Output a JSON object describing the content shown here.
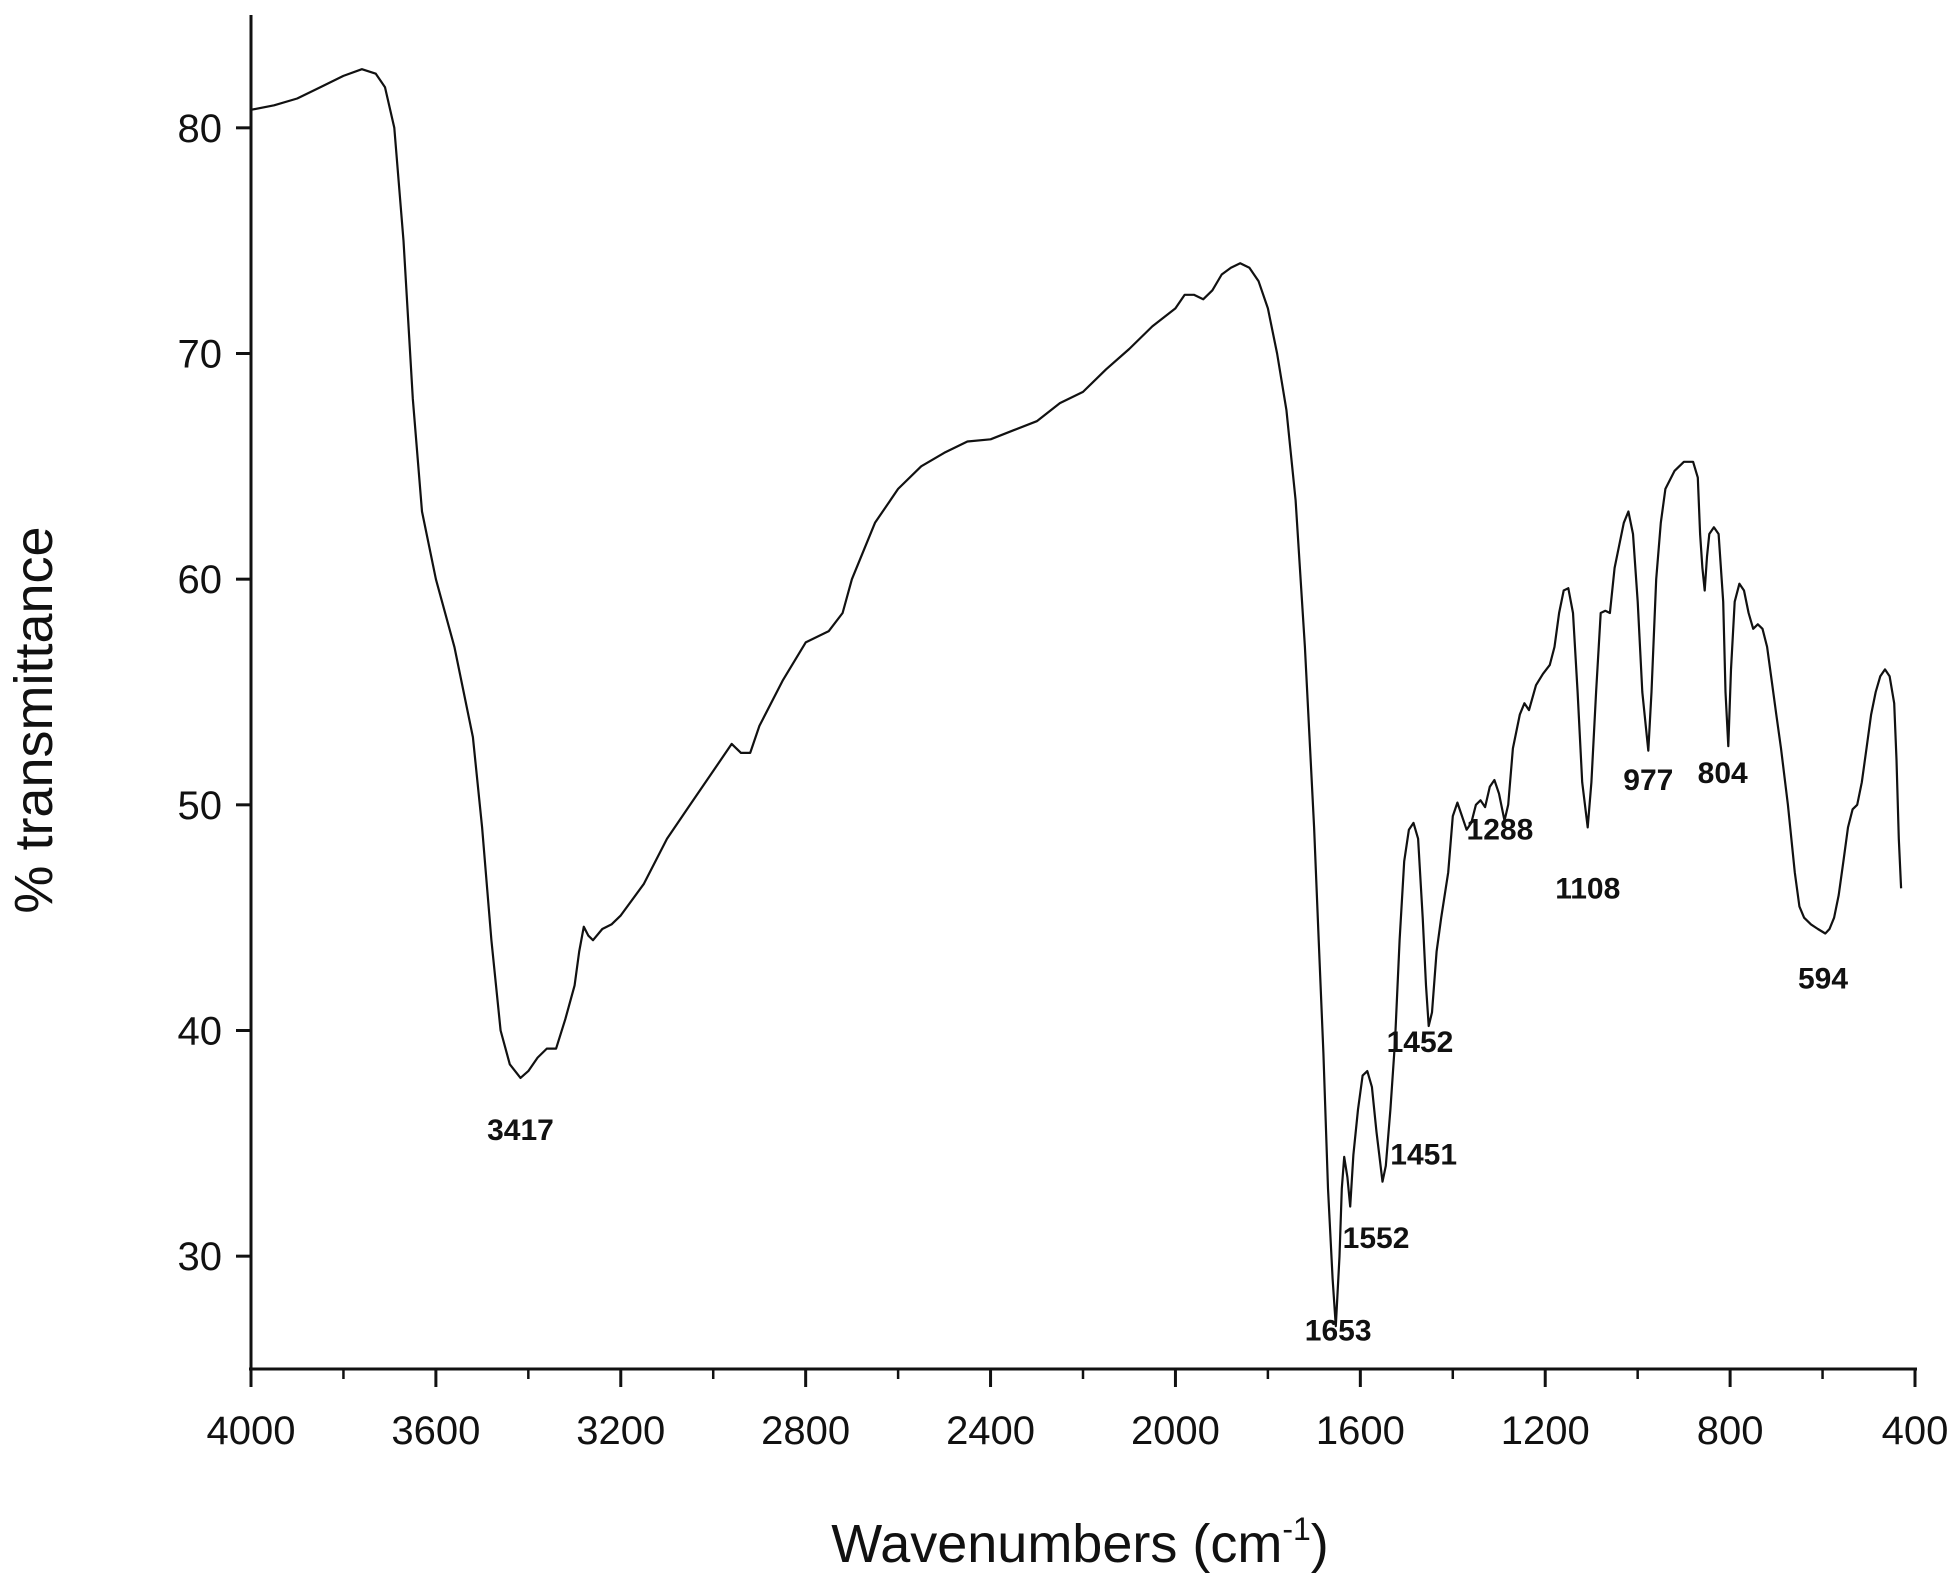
{
  "chart_data": {
    "type": "line",
    "title": "",
    "xlabel": "Wavenumbers (cm",
    "xlabel_sup": "-1",
    "xlabel_close": ")",
    "ylabel": "% transmittance",
    "xlim": [
      4000,
      400
    ],
    "x_reversed": true,
    "ylim": [
      25,
      85
    ],
    "grid": false,
    "line_color": "#111111",
    "x_ticks": [
      4000,
      3600,
      3200,
      2800,
      2400,
      2000,
      1600,
      1200,
      800,
      400
    ],
    "x_tick_labels": [
      "4000",
      "3600",
      "3200",
      "2800",
      "2400",
      "2000",
      "1600",
      "1200",
      "800",
      "400"
    ],
    "x_minor_ticks": [
      3800,
      3400,
      3000,
      2600,
      2200,
      1800,
      1400,
      1000,
      600
    ],
    "y_ticks": [
      30,
      40,
      50,
      60,
      70,
      80
    ],
    "y_tick_labels": [
      "30",
      "40",
      "50",
      "60",
      "70",
      "80"
    ],
    "series": [
      {
        "points": [
          [
            4000,
            80.8
          ],
          [
            3950,
            81.0
          ],
          [
            3900,
            81.3
          ],
          [
            3850,
            81.8
          ],
          [
            3800,
            82.3
          ],
          [
            3760,
            82.6
          ],
          [
            3730,
            82.4
          ],
          [
            3710,
            81.8
          ],
          [
            3690,
            80.0
          ],
          [
            3670,
            75.0
          ],
          [
            3650,
            68.0
          ],
          [
            3630,
            63.0
          ],
          [
            3600,
            60.0
          ],
          [
            3560,
            57.0
          ],
          [
            3520,
            53.0
          ],
          [
            3500,
            49.0
          ],
          [
            3480,
            44.0
          ],
          [
            3460,
            40.0
          ],
          [
            3440,
            38.5
          ],
          [
            3417,
            37.9
          ],
          [
            3400,
            38.2
          ],
          [
            3380,
            38.8
          ],
          [
            3360,
            39.2
          ],
          [
            3340,
            39.2
          ],
          [
            3320,
            40.5
          ],
          [
            3300,
            42.0
          ],
          [
            3290,
            43.5
          ],
          [
            3280,
            44.6
          ],
          [
            3270,
            44.2
          ],
          [
            3260,
            44.0
          ],
          [
            3240,
            44.5
          ],
          [
            3220,
            44.7
          ],
          [
            3200,
            45.1
          ],
          [
            3150,
            46.5
          ],
          [
            3100,
            48.5
          ],
          [
            3050,
            50.0
          ],
          [
            3000,
            51.5
          ],
          [
            2960,
            52.7
          ],
          [
            2940,
            52.3
          ],
          [
            2920,
            52.3
          ],
          [
            2900,
            53.5
          ],
          [
            2850,
            55.5
          ],
          [
            2800,
            57.2
          ],
          [
            2750,
            57.7
          ],
          [
            2720,
            58.5
          ],
          [
            2700,
            60.0
          ],
          [
            2650,
            62.5
          ],
          [
            2600,
            64.0
          ],
          [
            2550,
            65.0
          ],
          [
            2500,
            65.6
          ],
          [
            2450,
            66.1
          ],
          [
            2400,
            66.2
          ],
          [
            2350,
            66.6
          ],
          [
            2300,
            67.0
          ],
          [
            2250,
            67.8
          ],
          [
            2200,
            68.3
          ],
          [
            2150,
            69.3
          ],
          [
            2100,
            70.2
          ],
          [
            2050,
            71.2
          ],
          [
            2000,
            72.0
          ],
          [
            1980,
            72.6
          ],
          [
            1960,
            72.6
          ],
          [
            1940,
            72.4
          ],
          [
            1920,
            72.8
          ],
          [
            1900,
            73.5
          ],
          [
            1880,
            73.8
          ],
          [
            1860,
            74.0
          ],
          [
            1840,
            73.8
          ],
          [
            1820,
            73.2
          ],
          [
            1800,
            72.0
          ],
          [
            1780,
            70.0
          ],
          [
            1760,
            67.5
          ],
          [
            1740,
            63.5
          ],
          [
            1720,
            57.0
          ],
          [
            1700,
            49.0
          ],
          [
            1690,
            44.0
          ],
          [
            1680,
            39.0
          ],
          [
            1670,
            33.0
          ],
          [
            1660,
            29.0
          ],
          [
            1653,
            26.9
          ],
          [
            1645,
            30.0
          ],
          [
            1640,
            33.0
          ],
          [
            1635,
            34.4
          ],
          [
            1628,
            33.5
          ],
          [
            1622,
            32.2
          ],
          [
            1615,
            34.5
          ],
          [
            1605,
            36.5
          ],
          [
            1595,
            38.0
          ],
          [
            1585,
            38.2
          ],
          [
            1575,
            37.5
          ],
          [
            1565,
            35.5
          ],
          [
            1552,
            33.3
          ],
          [
            1545,
            34.0
          ],
          [
            1535,
            36.5
          ],
          [
            1525,
            39.5
          ],
          [
            1515,
            44.0
          ],
          [
            1505,
            47.5
          ],
          [
            1495,
            48.9
          ],
          [
            1485,
            49.2
          ],
          [
            1475,
            48.5
          ],
          [
            1465,
            45.0
          ],
          [
            1458,
            42.0
          ],
          [
            1452,
            40.2
          ],
          [
            1445,
            40.8
          ],
          [
            1435,
            43.5
          ],
          [
            1425,
            45.0
          ],
          [
            1410,
            47.0
          ],
          [
            1400,
            49.5
          ],
          [
            1390,
            50.1
          ],
          [
            1380,
            49.5
          ],
          [
            1370,
            48.9
          ],
          [
            1360,
            49.2
          ],
          [
            1350,
            50.0
          ],
          [
            1340,
            50.2
          ],
          [
            1330,
            49.9
          ],
          [
            1320,
            50.8
          ],
          [
            1310,
            51.1
          ],
          [
            1300,
            50.5
          ],
          [
            1288,
            49.3
          ],
          [
            1280,
            50.0
          ],
          [
            1270,
            52.5
          ],
          [
            1255,
            54.0
          ],
          [
            1245,
            54.5
          ],
          [
            1235,
            54.2
          ],
          [
            1220,
            55.3
          ],
          [
            1205,
            55.8
          ],
          [
            1190,
            56.2
          ],
          [
            1180,
            57.0
          ],
          [
            1170,
            58.5
          ],
          [
            1160,
            59.5
          ],
          [
            1150,
            59.6
          ],
          [
            1140,
            58.5
          ],
          [
            1130,
            55.0
          ],
          [
            1120,
            51.0
          ],
          [
            1108,
            49.0
          ],
          [
            1100,
            51.0
          ],
          [
            1090,
            55.0
          ],
          [
            1080,
            58.5
          ],
          [
            1070,
            58.6
          ],
          [
            1060,
            58.5
          ],
          [
            1050,
            60.5
          ],
          [
            1040,
            61.5
          ],
          [
            1030,
            62.5
          ],
          [
            1020,
            63.0
          ],
          [
            1010,
            62.0
          ],
          [
            1000,
            59.0
          ],
          [
            990,
            55.0
          ],
          [
            977,
            52.4
          ],
          [
            970,
            55.0
          ],
          [
            960,
            60.0
          ],
          [
            950,
            62.5
          ],
          [
            940,
            64.0
          ],
          [
            920,
            64.8
          ],
          [
            900,
            65.2
          ],
          [
            880,
            65.2
          ],
          [
            870,
            64.5
          ],
          [
            865,
            62.0
          ],
          [
            860,
            60.5
          ],
          [
            855,
            59.5
          ],
          [
            850,
            61.0
          ],
          [
            845,
            62.0
          ],
          [
            835,
            62.3
          ],
          [
            825,
            62.0
          ],
          [
            815,
            59.0
          ],
          [
            810,
            55.0
          ],
          [
            804,
            52.6
          ],
          [
            798,
            56.0
          ],
          [
            790,
            59.0
          ],
          [
            780,
            59.8
          ],
          [
            770,
            59.5
          ],
          [
            760,
            58.5
          ],
          [
            750,
            57.8
          ],
          [
            740,
            58.0
          ],
          [
            730,
            57.8
          ],
          [
            720,
            57.0
          ],
          [
            710,
            55.5
          ],
          [
            700,
            54.0
          ],
          [
            690,
            52.5
          ],
          [
            675,
            50.0
          ],
          [
            660,
            47.0
          ],
          [
            650,
            45.5
          ],
          [
            640,
            45.0
          ],
          [
            625,
            44.7
          ],
          [
            610,
            44.5
          ],
          [
            594,
            44.3
          ],
          [
            585,
            44.5
          ],
          [
            575,
            45.0
          ],
          [
            565,
            46.0
          ],
          [
            555,
            47.5
          ],
          [
            545,
            49.0
          ],
          [
            535,
            49.8
          ],
          [
            525,
            50.0
          ],
          [
            515,
            51.0
          ],
          [
            505,
            52.5
          ],
          [
            495,
            54.0
          ],
          [
            485,
            55.0
          ],
          [
            475,
            55.7
          ],
          [
            465,
            56.0
          ],
          [
            455,
            55.7
          ],
          [
            445,
            54.5
          ],
          [
            440,
            52.0
          ],
          [
            435,
            48.5
          ],
          [
            430,
            46.3
          ]
        ]
      }
    ],
    "annotations": [
      {
        "text": "3417",
        "x": 3417,
        "y": 37.9,
        "dy": 2.3
      },
      {
        "text": "1653",
        "x": 1653,
        "y": 26.9,
        "dx": -5,
        "dy": 0.2
      },
      {
        "text": "1552",
        "x": 1552,
        "y": 33.3,
        "dx": 14,
        "dy": 2.5
      },
      {
        "text": "1451",
        "x": 1452,
        "y": 40.2,
        "dx": 11,
        "dy": 5.7
      },
      {
        "text": "1452",
        "x": 1452,
        "y": 40.2,
        "dx": 19,
        "dy": 0.7
      },
      {
        "text": "1288",
        "x": 1288,
        "y": 49.3,
        "dx": 10,
        "dy": 0.4
      },
      {
        "text": "1108",
        "x": 1108,
        "y": 49.0,
        "dy": 2.7
      },
      {
        "text": "977",
        "x": 977,
        "y": 52.4,
        "dy": 1.3
      },
      {
        "text": "804",
        "x": 804,
        "y": 52.6,
        "dx": 12,
        "dy": 1.2
      },
      {
        "text": "594",
        "x": 594,
        "y": 44.3,
        "dx": 5,
        "dy": 2.0
      }
    ]
  }
}
